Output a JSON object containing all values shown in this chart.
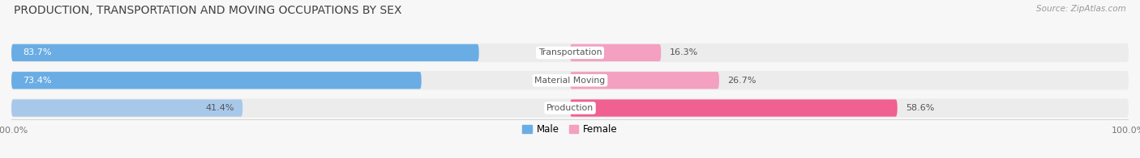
{
  "title": "PRODUCTION, TRANSPORTATION AND MOVING OCCUPATIONS BY SEX",
  "source": "Source: ZipAtlas.com",
  "categories": [
    "Transportation",
    "Material Moving",
    "Production"
  ],
  "male_pcts": [
    83.7,
    73.4,
    41.4
  ],
  "female_pcts": [
    16.3,
    26.7,
    58.6
  ],
  "male_colors": [
    "#6aade4",
    "#6aade4",
    "#a8c8ea"
  ],
  "female_colors": [
    "#f4a0c0",
    "#f4a0c0",
    "#f06090"
  ],
  "male_label_inside": [
    true,
    true,
    false
  ],
  "bg_row_color": "#ececec",
  "bg_color": "#f7f7f7",
  "label_color": "#555555",
  "title_color": "#404040",
  "figsize": [
    14.06,
    1.96
  ],
  "dpi": 100
}
